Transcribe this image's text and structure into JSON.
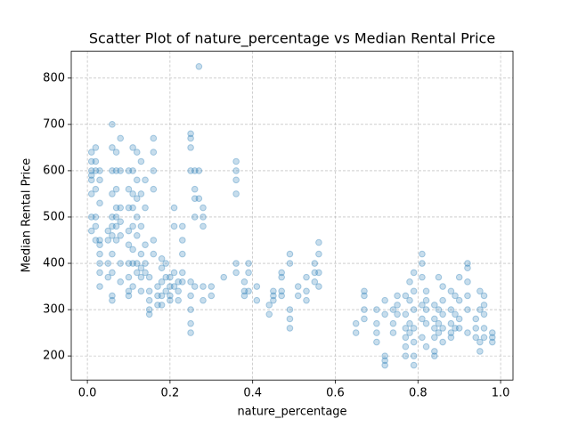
{
  "chart_data": {
    "type": "scatter",
    "title": "Scatter Plot of nature_percentage vs Median Rental Price",
    "x_label": "nature_percentage",
    "y_label": "Median Rental Price",
    "color": "#1f77b4",
    "grid": true,
    "xlim": [
      -0.039,
      1.03
    ],
    "ylim": [
      148,
      858
    ],
    "xticks": [
      {
        "value": 0,
        "label": "0.0"
      },
      0.2,
      0.4,
      0.6,
      0.8,
      {
        "value": 1,
        "label": "1.0"
      }
    ],
    "yticks": [
      200,
      300,
      400,
      500,
      600,
      700,
      800
    ],
    "x": [
      0.01,
      0.01,
      0.01,
      0.01,
      0.01,
      0.01,
      0.01,
      0.01,
      0.02,
      0.02,
      0.02,
      0.02,
      0.02,
      0.02,
      0.02,
      0.03,
      0.03,
      0.03,
      0.03,
      0.03,
      0.03,
      0.03,
      0.03,
      0.03,
      0.05,
      0.05,
      0.05,
      0.05,
      0.06,
      0.06,
      0.06,
      0.06,
      0.06,
      0.06,
      0.06,
      0.06,
      0.06,
      0.06,
      0.06,
      0.07,
      0.07,
      0.07,
      0.07,
      0.07,
      0.07,
      0.07,
      0.08,
      0.08,
      0.08,
      0.08,
      0.08,
      0.08,
      0.08,
      0.1,
      0.1,
      0.1,
      0.1,
      0.1,
      0.1,
      0.1,
      0.1,
      0.1,
      0.11,
      0.11,
      0.11,
      0.11,
      0.11,
      0.11,
      0.11,
      0.11,
      0.12,
      0.12,
      0.12,
      0.12,
      0.12,
      0.12,
      0.12,
      0.13,
      0.13,
      0.13,
      0.13,
      0.13,
      0.13,
      0.13,
      0.14,
      0.14,
      0.14,
      0.14,
      0.14,
      0.15,
      0.15,
      0.15,
      0.15,
      0.15,
      0.16,
      0.16,
      0.16,
      0.16,
      0.16,
      0.16,
      0.17,
      0.17,
      0.17,
      0.18,
      0.18,
      0.18,
      0.18,
      0.18,
      0.19,
      0.19,
      0.19,
      0.2,
      0.2,
      0.2,
      0.2,
      0.21,
      0.21,
      0.21,
      0.21,
      0.22,
      0.22,
      0.22,
      0.23,
      0.23,
      0.23,
      0.23,
      0.23,
      0.25,
      0.25,
      0.25,
      0.25,
      0.25,
      0.25,
      0.25,
      0.25,
      0.25,
      0.26,
      0.26,
      0.26,
      0.26,
      0.26,
      0.27,
      0.27,
      0.27,
      0.28,
      0.28,
      0.28,
      0.28,
      0.28,
      0.3,
      0.3,
      0.33,
      0.36,
      0.36,
      0.36,
      0.36,
      0.36,
      0.36,
      0.38,
      0.38,
      0.38,
      0.39,
      0.39,
      0.39,
      0.41,
      0.41,
      0.44,
      0.44,
      0.45,
      0.45,
      0.45,
      0.47,
      0.47,
      0.47,
      0.47,
      0.49,
      0.49,
      0.49,
      0.49,
      0.49,
      0.51,
      0.51,
      0.53,
      0.53,
      0.53,
      0.55,
      0.55,
      0.55,
      0.56,
      0.56,
      0.56,
      0.56,
      0.65,
      0.65,
      0.67,
      0.67,
      0.67,
      0.67,
      0.7,
      0.7,
      0.7,
      0.7,
      0.72,
      0.72,
      0.72,
      0.72,
      0.72,
      0.74,
      0.74,
      0.74,
      0.75,
      0.75,
      0.75,
      0.77,
      0.77,
      0.77,
      0.77,
      0.77,
      0.77,
      0.78,
      0.78,
      0.78,
      0.78,
      0.79,
      0.79,
      0.79,
      0.79,
      0.79,
      0.79,
      0.79,
      0.81,
      0.81,
      0.81,
      0.81,
      0.81,
      0.81,
      0.82,
      0.82,
      0.82,
      0.82,
      0.82,
      0.84,
      0.84,
      0.84,
      0.84,
      0.84,
      0.84,
      0.85,
      0.85,
      0.85,
      0.85,
      0.86,
      0.86,
      0.86,
      0.86,
      0.86,
      0.88,
      0.88,
      0.88,
      0.88,
      0.88,
      0.89,
      0.89,
      0.89,
      0.9,
      0.9,
      0.9,
      0.9,
      0.92,
      0.92,
      0.92,
      0.92,
      0.92,
      0.92,
      0.94,
      0.94,
      0.94,
      0.95,
      0.95,
      0.95,
      0.95,
      0.96,
      0.96,
      0.96,
      0.96,
      0.96,
      0.98,
      0.98,
      0.98
    ],
    "values": [
      600,
      640,
      590,
      620,
      580,
      550,
      500,
      470,
      600,
      620,
      650,
      560,
      500,
      480,
      450,
      600,
      580,
      530,
      450,
      440,
      420,
      400,
      380,
      350,
      370,
      400,
      450,
      470,
      700,
      650,
      600,
      550,
      500,
      480,
      460,
      420,
      380,
      330,
      320,
      640,
      600,
      560,
      520,
      500,
      480,
      450,
      670,
      600,
      520,
      490,
      460,
      400,
      360,
      600,
      560,
      520,
      470,
      440,
      400,
      370,
      340,
      330,
      650,
      600,
      550,
      520,
      480,
      430,
      400,
      350,
      640,
      580,
      540,
      500,
      460,
      400,
      380,
      620,
      550,
      480,
      420,
      390,
      370,
      340,
      580,
      520,
      440,
      400,
      380,
      370,
      340,
      320,
      300,
      290,
      670,
      640,
      600,
      560,
      450,
      420,
      350,
      330,
      310,
      410,
      390,
      360,
      330,
      310,
      400,
      370,
      340,
      370,
      350,
      330,
      320,
      520,
      480,
      380,
      350,
      360,
      340,
      320,
      480,
      450,
      420,
      380,
      360,
      680,
      670,
      650,
      600,
      360,
      330,
      300,
      270,
      250,
      600,
      560,
      540,
      500,
      350,
      825,
      600,
      540,
      520,
      500,
      480,
      350,
      320,
      350,
      330,
      370,
      620,
      600,
      580,
      550,
      400,
      380,
      360,
      340,
      330,
      400,
      380,
      340,
      350,
      320,
      310,
      290,
      340,
      330,
      320,
      380,
      370,
      340,
      330,
      420,
      400,
      300,
      280,
      260,
      350,
      330,
      370,
      340,
      320,
      400,
      380,
      360,
      445,
      420,
      380,
      350,
      270,
      250,
      340,
      330,
      300,
      280,
      300,
      270,
      250,
      230,
      320,
      290,
      200,
      190,
      180,
      300,
      270,
      250,
      330,
      310,
      290,
      330,
      290,
      260,
      240,
      220,
      200,
      360,
      320,
      270,
      250,
      380,
      340,
      300,
      260,
      230,
      200,
      180,
      420,
      400,
      370,
      310,
      280,
      240,
      340,
      320,
      300,
      270,
      220,
      310,
      280,
      260,
      240,
      210,
      200,
      370,
      300,
      270,
      250,
      350,
      320,
      290,
      260,
      230,
      340,
      300,
      270,
      250,
      240,
      330,
      290,
      260,
      370,
      320,
      280,
      260,
      400,
      390,
      360,
      330,
      300,
      250,
      280,
      260,
      240,
      340,
      300,
      230,
      210,
      330,
      310,
      290,
      260,
      240,
      250,
      240,
      230
    ]
  }
}
